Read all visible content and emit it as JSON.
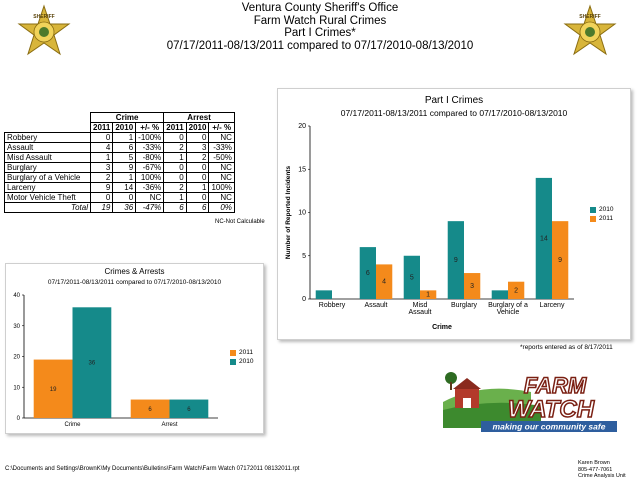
{
  "header": {
    "line1": "Ventura County Sheriff's Office",
    "line2": "Farm Watch Rural Crimes",
    "line3": "Part I Crimes*",
    "line4": "07/17/2011-08/13/2011 compared to 07/17/2010-08/13/2010"
  },
  "badge": {
    "text": "SHERIFF"
  },
  "table": {
    "group_crime": "Crime",
    "group_arrest": "Arrest",
    "columns": [
      "2011",
      "2010",
      "+/- %",
      "2011",
      "2010",
      "+/- %"
    ],
    "rows": [
      {
        "label": "Robbery",
        "c2011": "0",
        "c2010": "1",
        "cpct": "-100%",
        "a2011": "0",
        "a2010": "0",
        "apct": "NC"
      },
      {
        "label": "Assault",
        "c2011": "4",
        "c2010": "6",
        "cpct": "-33%",
        "a2011": "2",
        "a2010": "3",
        "apct": "-33%"
      },
      {
        "label": "Misd  Assault",
        "c2011": "1",
        "c2010": "5",
        "cpct": "-80%",
        "a2011": "1",
        "a2010": "2",
        "apct": "-50%"
      },
      {
        "label": "Burglary",
        "c2011": "3",
        "c2010": "9",
        "cpct": "-67%",
        "a2011": "0",
        "a2010": "0",
        "apct": "NC"
      },
      {
        "label": "Burglary of a Vehicle",
        "c2011": "2",
        "c2010": "1",
        "cpct": "100%",
        "a2011": "0",
        "a2010": "0",
        "apct": "NC"
      },
      {
        "label": "Larceny",
        "c2011": "9",
        "c2010": "14",
        "cpct": "-36%",
        "a2011": "2",
        "a2010": "1",
        "apct": "100%"
      },
      {
        "label": "Motor Vehicle Theft",
        "c2011": "0",
        "c2010": "0",
        "cpct": "NC",
        "a2011": "1",
        "a2010": "0",
        "apct": "NC"
      }
    ],
    "total": {
      "label": "Total",
      "c2011": "19",
      "c2010": "36",
      "cpct": "-47%",
      "a2011": "6",
      "a2010": "6",
      "apct": "0%"
    },
    "note": "NC-Not Calculable"
  },
  "colors": {
    "y2010": "#158a8a",
    "y2011": "#f48a1b"
  },
  "chart_data": [
    {
      "type": "bar",
      "title": "Part I Crimes",
      "subtitle": "07/17/2011-08/13/2011 compared to 07/17/2010-08/13/2010",
      "xlabel": "Crime",
      "ylabel": "Number of Reported Incidents",
      "ylim": [
        0,
        20
      ],
      "yticks": [
        0,
        5,
        10,
        15,
        20
      ],
      "categories": [
        "Robbery",
        "Assault",
        "Misd Assault",
        "Burglary",
        "Burglary of a Vehicle",
        "Larceny"
      ],
      "category_lines": [
        [
          "Robbery"
        ],
        [
          "Assault"
        ],
        [
          "Misd",
          "Assault"
        ],
        [
          "Burglary"
        ],
        [
          "Burglary of a",
          "Vehicle"
        ],
        [
          "Larceny"
        ]
      ],
      "series": [
        {
          "name": "2010",
          "values": [
            1,
            6,
            5,
            9,
            1,
            14
          ],
          "labels": [
            "",
            "6",
            "5",
            "9",
            "",
            "14"
          ]
        },
        {
          "name": "2011",
          "values": [
            0,
            4,
            1,
            3,
            2,
            9
          ],
          "labels": [
            "",
            "4",
            "1",
            "3",
            "2",
            "9"
          ]
        }
      ],
      "legend": "right"
    },
    {
      "type": "bar",
      "title": "Crimes & Arrests",
      "subtitle": "07/17/2011-08/13/2011 compared to 07/17/2010-08/13/2010",
      "ylim": [
        0,
        40
      ],
      "yticks": [
        0,
        10,
        20,
        30,
        40
      ],
      "categories": [
        "Crime",
        "Arrest"
      ],
      "series": [
        {
          "name": "2011",
          "values": [
            19,
            6
          ],
          "labels": [
            "19",
            "6"
          ]
        },
        {
          "name": "2010",
          "values": [
            36,
            6
          ],
          "labels": [
            "36",
            "6"
          ]
        }
      ],
      "legend": "right"
    }
  ],
  "footnote": "*reports entered as of 8/17/2011",
  "path": "C:\\Documents and Settings\\BrownK\\My Documents\\Bulletins\\Farm Watch\\Farm Watch 07172011 08132011.rpt",
  "contact": {
    "name": "Karen Brown",
    "phone": "805-477-7061",
    "unit": "Crime Analysis Unit"
  },
  "logo": {
    "line1": "FARM",
    "line2": "WATCH",
    "tagline": "making our community safe"
  }
}
